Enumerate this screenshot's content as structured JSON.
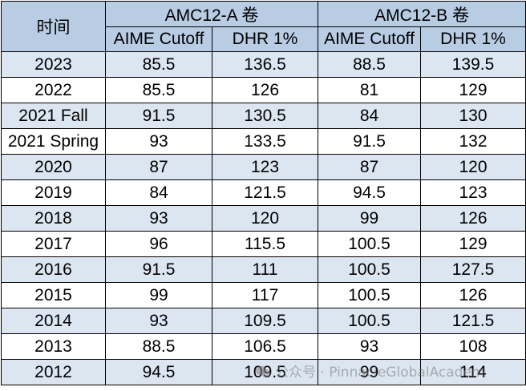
{
  "table": {
    "header": {
      "time": "时间",
      "group_a": "AMC12-A 卷",
      "group_b": "AMC12-B 卷",
      "sub": [
        "AIME Cutoff",
        "DHR 1%",
        "AIME Cutoff",
        "DHR 1%"
      ]
    },
    "rows": [
      [
        "2023",
        "85.5",
        "136.5",
        "88.5",
        "139.5"
      ],
      [
        "2022",
        "85.5",
        "126",
        "81",
        "129"
      ],
      [
        "2021 Fall",
        "91.5",
        "130.5",
        "84",
        "130"
      ],
      [
        "2021 Spring",
        "93",
        "133.5",
        "91.5",
        "132"
      ],
      [
        "2020",
        "87",
        "123",
        "87",
        "120"
      ],
      [
        "2019",
        "84",
        "121.5",
        "94.5",
        "123"
      ],
      [
        "2018",
        "93",
        "120",
        "99",
        "126"
      ],
      [
        "2017",
        "96",
        "115.5",
        "100.5",
        "129"
      ],
      [
        "2016",
        "91.5",
        "111",
        "100.5",
        "127.5"
      ],
      [
        "2015",
        "99",
        "117",
        "100.5",
        "126"
      ],
      [
        "2014",
        "93",
        "109.5",
        "100.5",
        "121.5"
      ],
      [
        "2013",
        "88.5",
        "106.5",
        "93",
        "108"
      ],
      [
        "2012",
        "94.5",
        "109.5",
        "99",
        "114"
      ]
    ]
  },
  "watermark": {
    "icon": "wechat-icon",
    "text": "公众号 · PinnacleGlobalAcadem"
  },
  "colors": {
    "header_bg": "#b8cce4",
    "stripe_bg": "#dce6f1"
  }
}
